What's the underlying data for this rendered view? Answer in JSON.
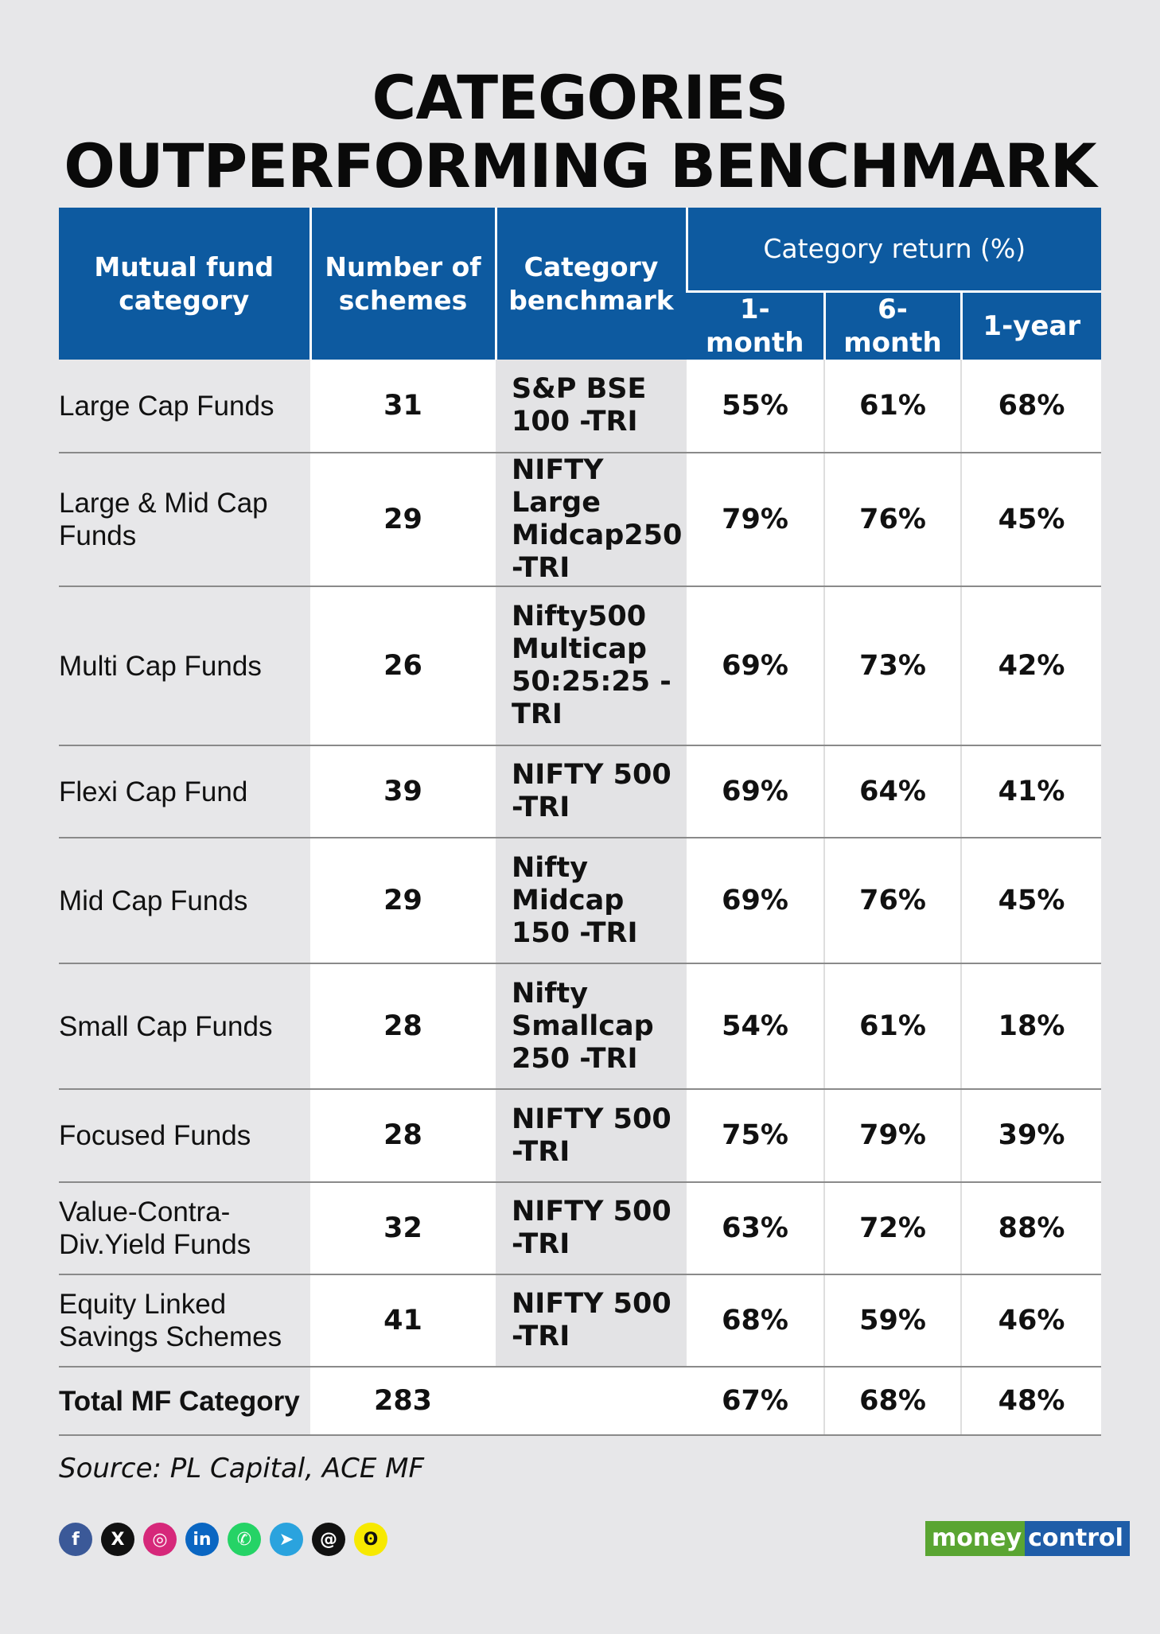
{
  "title": {
    "line1": "CATEGORIES",
    "line2": "OUTPERFORMING BENCHMARK"
  },
  "table": {
    "headers": {
      "category": "Mutual fund category",
      "schemes": "Number of schemes",
      "benchmark": "Category benchmark",
      "returns": "Category return (%)",
      "m1": "1-month",
      "m6": "6-month",
      "y1": "1-year"
    },
    "rows": [
      {
        "category": "Large Cap Funds",
        "schemes": "31",
        "benchmark": "S&P BSE 100 -TRI",
        "m1": "55%",
        "m6": "61%",
        "y1": "68%"
      },
      {
        "category": "Large & Mid Cap Funds",
        "schemes": "29",
        "benchmark": "NIFTY Large Midcap250 -TRI",
        "m1": "79%",
        "m6": "76%",
        "y1": "45%"
      },
      {
        "category": "Multi Cap Funds",
        "schemes": "26",
        "benchmark": "Nifty500 Multicap 50:25:25 - TRI",
        "m1": "69%",
        "m6": "73%",
        "y1": "42%"
      },
      {
        "category": "Flexi Cap Fund",
        "schemes": "39",
        "benchmark": "NIFTY 500 -TRI",
        "m1": "69%",
        "m6": "64%",
        "y1": "41%"
      },
      {
        "category": "Mid Cap Funds",
        "schemes": "29",
        "benchmark": "Nifty Midcap 150 -TRI",
        "m1": "69%",
        "m6": "76%",
        "y1": "45%"
      },
      {
        "category": "Small Cap Funds",
        "schemes": "28",
        "benchmark": "Nifty Smallcap 250 -TRI",
        "m1": "54%",
        "m6": "61%",
        "y1": "18%"
      },
      {
        "category": "Focused Funds",
        "schemes": "28",
        "benchmark": "NIFTY 500 -TRI",
        "m1": "75%",
        "m6": "79%",
        "y1": "39%"
      },
      {
        "category": "Value-Contra- Div.Yield Funds",
        "schemes": "32",
        "benchmark": "NIFTY 500 -TRI",
        "m1": "63%",
        "m6": "72%",
        "y1": "88%"
      },
      {
        "category": "Equity Linked Savings Schemes",
        "schemes": "41",
        "benchmark": "NIFTY 500 -TRI",
        "m1": "68%",
        "m6": "59%",
        "y1": "46%"
      }
    ],
    "total": {
      "category": "Total MF Category",
      "schemes": "283",
      "benchmark": "",
      "m1": "67%",
      "m6": "68%",
      "y1": "48%"
    }
  },
  "source": "Source: PL Capital, ACE MF",
  "social_icons": [
    {
      "name": "facebook-icon",
      "glyph": "f",
      "color": "#3b5998"
    },
    {
      "name": "x-icon",
      "glyph": "X",
      "color": "#111111"
    },
    {
      "name": "instagram-icon",
      "glyph": "◎",
      "color": "#d6287a"
    },
    {
      "name": "linkedin-icon",
      "glyph": "in",
      "color": "#0a66c2"
    },
    {
      "name": "whatsapp-icon",
      "glyph": "✆",
      "color": "#25d366"
    },
    {
      "name": "telegram-icon",
      "glyph": "➤",
      "color": "#2aa3de"
    },
    {
      "name": "threads-icon",
      "glyph": "@",
      "color": "#111111"
    },
    {
      "name": "snapchat-icon",
      "glyph": "ʘ",
      "color": "#f7e900"
    }
  ],
  "brand": {
    "part1": "money",
    "part2": "control"
  }
}
